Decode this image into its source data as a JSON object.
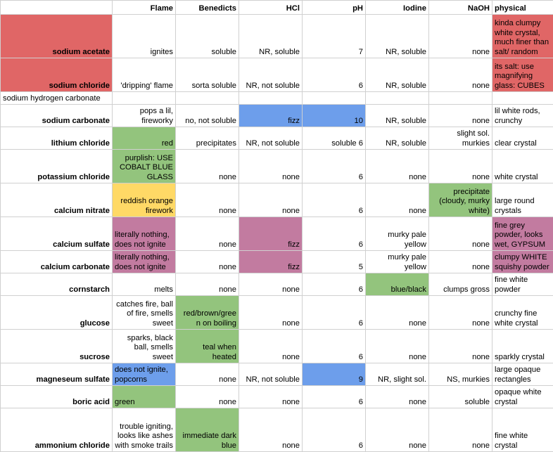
{
  "headers": [
    "",
    "Flame",
    "Benedicts",
    "HCl",
    "pH",
    "Iodine",
    "NaOH",
    "physical"
  ],
  "rows": [
    {
      "name": "sodium acetate",
      "flame": "ignites",
      "benedicts": "soluble",
      "hcl": "NR, soluble",
      "ph": "7",
      "iodine": "NR, soluble",
      "naoh": "none",
      "physical": "kinda clumpy white crystal, much finer than salt/ random"
    },
    {
      "name": "sodium chloride",
      "flame": "'dripping' flame",
      "benedicts": "sorta soluble",
      "hcl": "NR, not soluble",
      "ph": "6",
      "iodine": "NR, soluble",
      "naoh": "none",
      "physical": "its salt: use magnifying glass: CUBES"
    },
    {
      "name": "sodium hydrogen carbonate",
      "flame": "",
      "benedicts": "",
      "hcl": "",
      "ph": "",
      "iodine": "",
      "naoh": "",
      "physical": ""
    },
    {
      "name": "sodium carbonate",
      "flame": "pops a lil, fireworky",
      "benedicts": "no, not soluble",
      "hcl": "fizz",
      "ph": "10",
      "iodine": "NR, soluble",
      "naoh": "none",
      "physical": "lil white rods, crunchy"
    },
    {
      "name": "lithium chloride",
      "flame": "red",
      "benedicts": "precipitates",
      "hcl": "NR, not soluble",
      "ph": "soluble 6",
      "iodine": "NR, soluble",
      "naoh": "slight sol. murkies",
      "physical": "clear crystal"
    },
    {
      "name": "potassium chloride",
      "flame": "purplish: USE COBALT BLUE GLASS",
      "benedicts": "none",
      "hcl": "none",
      "ph": "6",
      "iodine": "none",
      "naoh": "none",
      "physical": "white crystal"
    },
    {
      "name": "calcium nitrate",
      "flame": "reddish orange firework",
      "benedicts": "none",
      "hcl": "none",
      "ph": "6",
      "iodine": "none",
      "naoh": "precipitate (cloudy, murky white)",
      "physical": "large round crystals"
    },
    {
      "name": "calcium sulfate",
      "flame": "literally nothing, does not ignite",
      "benedicts": "none",
      "hcl": "fizz",
      "ph": "6",
      "iodine": "murky pale yellow",
      "naoh": "none",
      "physical": "fine grey powder, looks wet, GYPSUM"
    },
    {
      "name": "calcium carbonate",
      "flame": "literally nothing, does not ignite",
      "benedicts": "none",
      "hcl": "fizz",
      "ph": "5",
      "iodine": "murky pale yellow",
      "naoh": "none",
      "physical": "clumpy WHITE squishy powder"
    },
    {
      "name": "cornstarch",
      "flame": "melts",
      "benedicts": "none",
      "hcl": "none",
      "ph": "6",
      "iodine": "blue/black",
      "naoh": "clumps gross",
      "physical": "fine white powder"
    },
    {
      "name": "glucose",
      "flame": "catches fire, ball of fire, smells sweet",
      "benedicts": "red/brown/gree n on boiling",
      "hcl": "none",
      "ph": "6",
      "iodine": "none",
      "naoh": "none",
      "physical": "crunchy fine white crystal"
    },
    {
      "name": "sucrose",
      "flame": "sparks, black ball, smells sweet",
      "benedicts": "teal when heated",
      "hcl": "none",
      "ph": "6",
      "iodine": "none",
      "naoh": "none",
      "physical": "sparkly crystal"
    },
    {
      "name": "magneseum sulfate",
      "flame": "does not ignite, popcorns",
      "benedicts": "none",
      "hcl": "NR, not soluble",
      "ph": "9",
      "iodine": "NR, slight sol.",
      "naoh": "NS,  murkies",
      "physical": "large opaque rectangles"
    },
    {
      "name": "boric acid",
      "flame": "green",
      "benedicts": "none",
      "hcl": "none",
      "ph": "6",
      "iodine": "none",
      "naoh": "soluble",
      "physical": "opaque white crystal"
    },
    {
      "name": "ammonium chloride",
      "flame": "trouble igniting, looks like ashes with smoke trails",
      "benedicts": "immediate dark blue",
      "hcl": "none",
      "ph": "6",
      "iodine": "none",
      "naoh": "none",
      "physical": "fine white crystal"
    }
  ],
  "colors": {
    "red": "#e06666",
    "green": "#93c47d",
    "blue": "#6d9eeb",
    "yellow": "#ffd966",
    "purple": "#c27ba0"
  }
}
